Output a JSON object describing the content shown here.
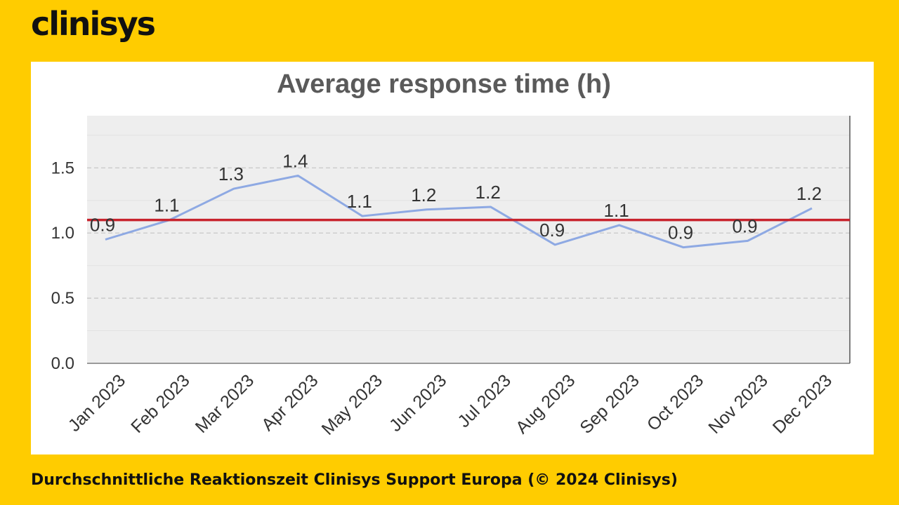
{
  "brand": {
    "logo_text": "clinisys",
    "background_color": "#FFCC00"
  },
  "caption": "Durchschnittliche Reaktionszeit Clinisys Support Europa (© 2024 Clinisys)",
  "chart_data": {
    "type": "line",
    "title": "Average response time (h)",
    "xlabel": "",
    "ylabel": "",
    "categories": [
      "Jan 2023",
      "Feb 2023",
      "Mar 2023",
      "Apr 2023",
      "May 2023",
      "Jun 2023",
      "Jul 2023",
      "Aug 2023",
      "Sep 2023",
      "Oct 2023",
      "Nov 2023",
      "Dec 2023"
    ],
    "values": [
      0.95,
      1.1,
      1.34,
      1.44,
      1.13,
      1.18,
      1.2,
      0.91,
      1.06,
      0.89,
      0.94,
      1.19
    ],
    "data_labels": [
      "0.9",
      "1.1",
      "1.3",
      "1.4",
      "1.1",
      "1.2",
      "1.2",
      "0.9",
      "1.1",
      "0.9",
      "0.9",
      "1.2"
    ],
    "reference_line": 1.1,
    "ylim": [
      0,
      1.9
    ],
    "yticks": [
      0.0,
      0.5,
      1.0,
      1.5
    ],
    "ytick_labels": [
      "0.0",
      "0.5",
      "1.0",
      "1.5"
    ],
    "grid": true,
    "line_color": "#8EA9E3",
    "reference_color": "#C8232C",
    "plot_background": "#EEEEEE"
  }
}
